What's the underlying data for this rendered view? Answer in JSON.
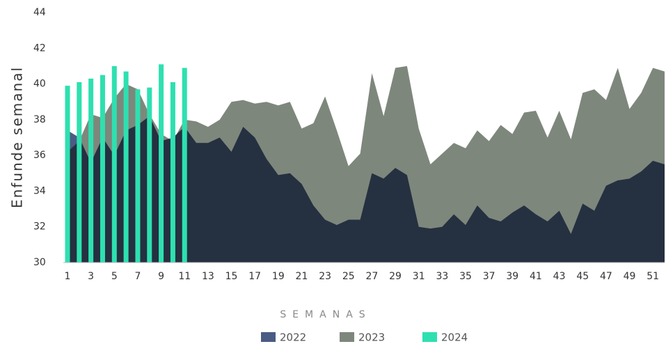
{
  "chart_data": {
    "type": "area",
    "y_axis_label": "Enfunde semanal",
    "x_axis_label": "SEMANAS",
    "x": [
      1,
      2,
      3,
      4,
      5,
      6,
      7,
      8,
      9,
      10,
      11,
      12,
      13,
      14,
      15,
      16,
      17,
      18,
      19,
      20,
      21,
      22,
      23,
      24,
      25,
      26,
      27,
      28,
      29,
      30,
      31,
      32,
      33,
      34,
      35,
      36,
      37,
      38,
      39,
      40,
      41,
      42,
      43,
      44,
      45,
      46,
      47,
      48,
      49,
      50,
      51,
      52
    ],
    "series": [
      {
        "name": "2022",
        "color": "#4a5b84",
        "values": [
          37.4,
          37.0,
          35.6,
          37.0,
          36.0,
          37.4,
          37.7,
          38.2,
          36.8,
          37.0,
          37.6,
          36.7,
          36.7,
          37.0,
          36.2,
          37.6,
          37.0,
          35.8,
          34.9,
          35.0,
          34.4,
          33.2,
          32.4,
          32.1,
          32.4,
          32.4,
          35.0,
          34.7,
          35.3,
          34.9,
          32.0,
          31.9,
          32.0,
          32.7,
          32.1,
          33.2,
          32.5,
          32.3,
          32.8,
          33.2,
          32.7,
          32.3,
          32.9,
          31.6,
          33.3,
          32.9,
          34.3,
          34.6,
          34.7,
          35.1,
          35.7,
          35.5
        ]
      },
      {
        "name": "2023",
        "color": "#7e877c",
        "values": [
          36.2,
          36.8,
          38.3,
          38.1,
          39.2,
          40.0,
          39.7,
          38.3,
          37.2,
          36.8,
          38.0,
          37.9,
          37.6,
          38.0,
          39.0,
          39.1,
          38.9,
          39.0,
          38.8,
          39.0,
          37.5,
          37.8,
          39.3,
          37.4,
          35.4,
          36.1,
          40.6,
          38.2,
          40.9,
          41.0,
          37.5,
          35.5,
          36.1,
          36.7,
          36.4,
          37.4,
          36.8,
          37.7,
          37.2,
          38.4,
          38.5,
          37.0,
          38.5,
          36.9,
          39.5,
          39.7,
          39.1,
          40.9,
          38.6,
          39.5,
          40.9,
          40.7
        ]
      },
      {
        "name": "2024",
        "color": "#2ee0b0",
        "type": "bar",
        "values": [
          39.9,
          40.1,
          40.3,
          40.5,
          41.0,
          40.7,
          39.7,
          39.8,
          41.1,
          40.1,
          40.9,
          null,
          null,
          null,
          null,
          null,
          null,
          null,
          null,
          null,
          null,
          null,
          null,
          null,
          null,
          null,
          null,
          null,
          null,
          null,
          null,
          null,
          null,
          null,
          null,
          null,
          null,
          null,
          null,
          null,
          null,
          null,
          null,
          null,
          null,
          null,
          null,
          null,
          null,
          null,
          null,
          null
        ]
      }
    ],
    "xlim": [
      1,
      52
    ],
    "xticks": [
      1,
      3,
      5,
      7,
      9,
      11,
      13,
      15,
      17,
      19,
      21,
      23,
      25,
      27,
      29,
      31,
      33,
      35,
      37,
      39,
      41,
      43,
      45,
      47,
      49,
      51
    ],
    "ylim": [
      30,
      44
    ],
    "yticks": [
      30,
      32,
      34,
      36,
      38,
      40,
      42,
      44
    ],
    "legend": "bottom"
  }
}
